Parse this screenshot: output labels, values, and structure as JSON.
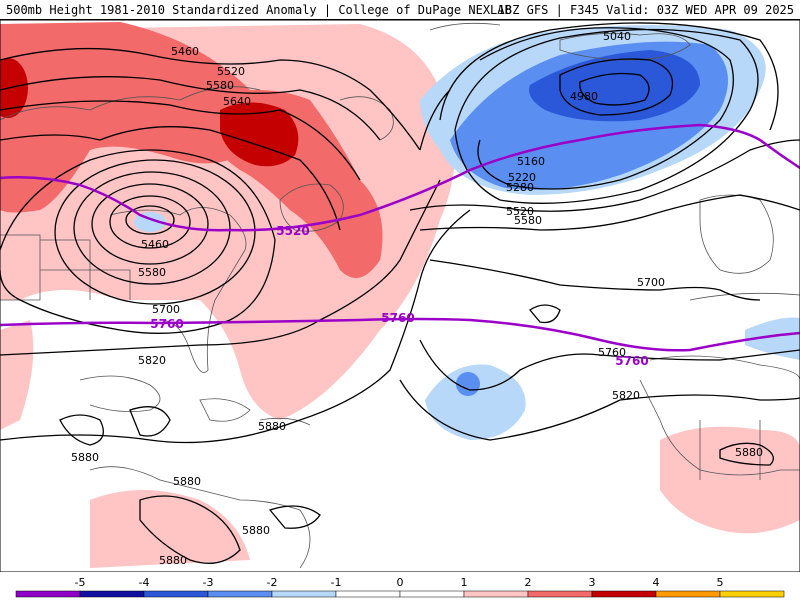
{
  "header": {
    "title": "500mb Height 1981-2010 Standardized Anomaly | College of DuPage NEXLAB",
    "run_info": "18Z GFS | F345 Valid: 03Z WED APR 09 2025"
  },
  "contour_labels": [
    "5460",
    "5520",
    "5580",
    "5640",
    "5460",
    "5580",
    "5700",
    "5820",
    "5880",
    "5880",
    "5880",
    "5880",
    "5880",
    "5040",
    "4980",
    "5160",
    "5220",
    "5280",
    "5520",
    "5580",
    "5700",
    "5760",
    "5820",
    "5880"
  ],
  "highlight_labels": [
    "5520",
    "5760",
    "5760",
    "5760"
  ],
  "colorbar": {
    "ticks": [
      "-5",
      "-4",
      "-3",
      "-2",
      "-1",
      "0",
      "1",
      "2",
      "3",
      "4",
      "5"
    ],
    "colors": [
      "#8f00c8",
      "#1010a0",
      "#2a58d8",
      "#5a8ef0",
      "#b8d8fa",
      "#ffffff",
      "#ffffff",
      "#ffc4c4",
      "#f26a6a",
      "#c40000",
      "#ff9a00",
      "#ffd000"
    ]
  },
  "colors": {
    "height_contour": "#000000",
    "highlight_contour": "#9a00c8",
    "neg_anomaly_strong": "#2a58d8",
    "neg_anomaly_mid": "#5a8ef0",
    "neg_anomaly_weak": "#b8d8fa",
    "pos_anomaly_weak": "#ffc4c4",
    "pos_anomaly_mid": "#f26a6a",
    "pos_anomaly_strong": "#c40000"
  }
}
